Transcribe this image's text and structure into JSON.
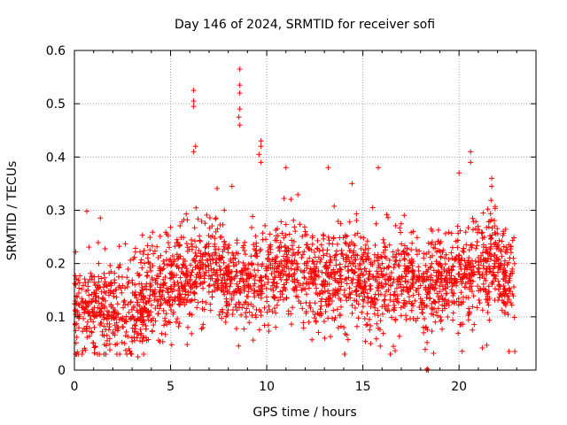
{
  "chart_data": {
    "type": "scatter",
    "title": "Day 146 of 2024, SRMTID for receiver sofi",
    "xlabel": "GPS time / hours",
    "ylabel": "SRMTID / TECUs",
    "xlim": [
      0,
      24
    ],
    "ylim": [
      0,
      0.6
    ],
    "xticks": [
      0,
      5,
      10,
      15,
      20
    ],
    "yticks": [
      0,
      0.1,
      0.2,
      0.3,
      0.4,
      0.5,
      0.6
    ],
    "xtick_labels": [
      "0",
      "5",
      "10",
      "15",
      "20"
    ],
    "ytick_labels": [
      "0",
      "0.1",
      "0.2",
      "0.3",
      "0.4",
      "0.5",
      "0.6"
    ],
    "grid": true,
    "marker": "plus",
    "color": "#ff0000",
    "n_points_approx": 2600,
    "x_range_observed": [
      0,
      22.9
    ],
    "series": [
      {
        "name": "SRMTID",
        "highlights": [
          [
            6.2,
            0.525
          ],
          [
            6.2,
            0.505
          ],
          [
            6.2,
            0.495
          ],
          [
            8.6,
            0.565
          ],
          [
            8.6,
            0.535
          ],
          [
            8.6,
            0.52
          ],
          [
            8.6,
            0.49
          ],
          [
            8.55,
            0.475
          ],
          [
            8.6,
            0.46
          ],
          [
            9.7,
            0.43
          ],
          [
            9.7,
            0.42
          ],
          [
            9.6,
            0.405
          ],
          [
            9.7,
            0.39
          ],
          [
            6.3,
            0.42
          ],
          [
            6.2,
            0.41
          ],
          [
            11.0,
            0.38
          ],
          [
            13.2,
            0.38
          ],
          [
            15.8,
            0.38
          ],
          [
            20.6,
            0.41
          ],
          [
            20.6,
            0.39
          ],
          [
            20.0,
            0.37
          ],
          [
            21.7,
            0.36
          ],
          [
            21.7,
            0.345
          ],
          [
            3.3,
            0.025
          ],
          [
            22.6,
            0.035
          ],
          [
            22.9,
            0.035
          ],
          [
            18.3,
            0.0
          ],
          [
            18.4,
            0.0
          ],
          [
            18.35,
            0.002
          ]
        ]
      }
    ]
  }
}
